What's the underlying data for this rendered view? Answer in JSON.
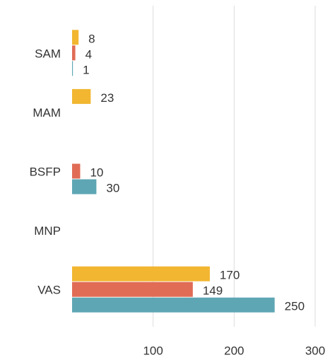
{
  "chart_data": {
    "type": "hbar",
    "categories": [
      "SAM",
      "MAM",
      "BSFP",
      "MNP",
      "VAS"
    ],
    "series": [
      {
        "color": "#f2b631",
        "values": [
          8,
          23,
          null,
          null,
          170
        ]
      },
      {
        "color": "#e06c55",
        "values": [
          4,
          null,
          10,
          null,
          149
        ]
      },
      {
        "color": "#5ea6b4",
        "values": [
          1,
          null,
          30,
          null,
          250
        ]
      }
    ],
    "xlim": [
      0,
      300
    ],
    "xticks": [
      100,
      200,
      300
    ],
    "grid": true
  }
}
